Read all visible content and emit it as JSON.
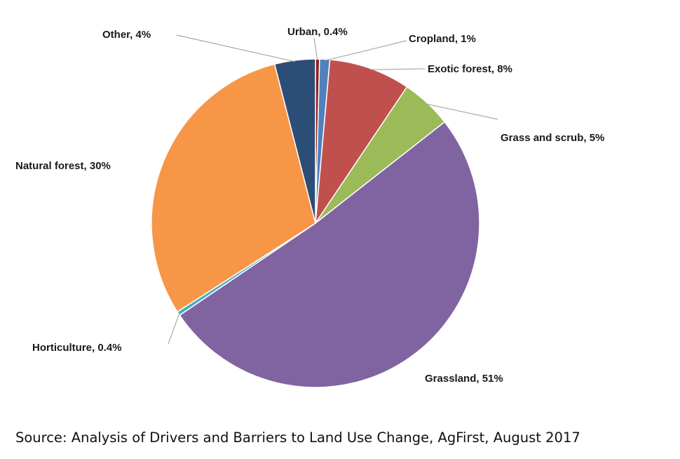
{
  "chart_data": {
    "type": "pie",
    "title": "",
    "slices": [
      {
        "label": "Urban",
        "value": 0.4,
        "display": "0.4%",
        "color": "#8B1E1E"
      },
      {
        "label": "Cropland",
        "value": 1,
        "display": "1%",
        "color": "#4F81BD"
      },
      {
        "label": "Exotic forest",
        "value": 8,
        "display": "8%",
        "color": "#C0504D"
      },
      {
        "label": "Grass and scrub",
        "value": 5,
        "display": "5%",
        "color": "#9BBB59"
      },
      {
        "label": "Grassland",
        "value": 51,
        "display": "51%",
        "color": "#8064A2"
      },
      {
        "label": "Horticulture",
        "value": 0.4,
        "display": "0.4%",
        "color": "#4BACC6"
      },
      {
        "label": "Natural forest",
        "value": 30,
        "display": "30%",
        "color": "#F79646"
      },
      {
        "label": "Other",
        "value": 4,
        "display": "4%",
        "color": "#2C4D75"
      }
    ]
  },
  "source": "Source: Analysis of Drivers and Barriers to Land Use Change, AgFirst, August 2017"
}
